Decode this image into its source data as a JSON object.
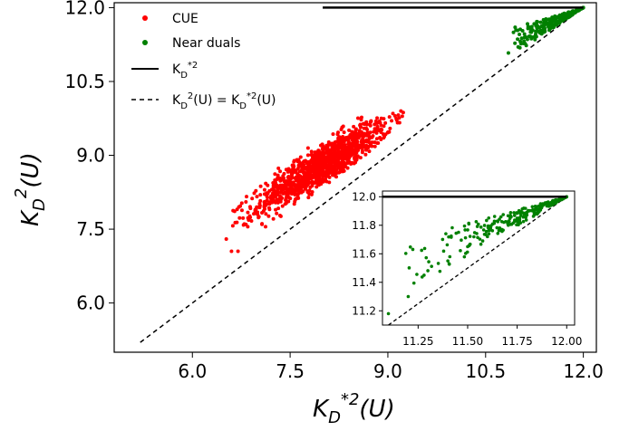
{
  "chart_data": [
    {
      "type": "scatter",
      "role": "main",
      "xlabel": "K_D^{*2}(U)",
      "ylabel": "K_D^{2}(U)",
      "xlim": [
        4.8,
        12.2
      ],
      "ylim": [
        5.0,
        12.1
      ],
      "xticks": [
        6.0,
        7.5,
        9.0,
        10.5,
        12.0
      ],
      "xtick_labels": [
        "6.0",
        "7.5",
        "9.0",
        "10.5",
        "12.0"
      ],
      "yticks": [
        6.0,
        7.5,
        9.0,
        10.5,
        12.0
      ],
      "ytick_labels": [
        "6.0",
        "7.5",
        "9.0",
        "10.5",
        "12.0"
      ],
      "grid": false,
      "legend_position": "top-left",
      "series": [
        {
          "name": "CUE",
          "kind": "scatter",
          "color": "#ff0000",
          "cluster": {
            "x_range": [
              6.5,
              9.3
            ],
            "y_range": [
              7.0,
              9.9
            ],
            "center": [
              8.0,
              8.8
            ],
            "count": 1200
          },
          "points": [
            [
              6.52,
              7.3
            ],
            [
              6.6,
              7.05
            ],
            [
              6.7,
              7.05
            ],
            [
              6.85,
              7.55
            ],
            [
              7.0,
              7.8
            ],
            [
              7.3,
              8.1
            ],
            [
              7.7,
              8.5
            ],
            [
              8.0,
              8.8
            ],
            [
              8.3,
              9.1
            ],
            [
              8.6,
              9.4
            ],
            [
              8.9,
              9.75
            ],
            [
              9.2,
              9.9
            ]
          ]
        },
        {
          "name": "Near duals",
          "kind": "scatter",
          "color": "#008000",
          "points": [
            [
              10.85,
              11.08
            ],
            [
              11.0,
              11.2
            ],
            [
              11.2,
              11.5
            ],
            [
              11.4,
              11.65
            ],
            [
              11.6,
              11.8
            ],
            [
              11.8,
              11.9
            ],
            [
              12.0,
              12.0
            ]
          ]
        },
        {
          "name": "K_D^{*2}",
          "kind": "line",
          "style": "solid",
          "color": "#000000",
          "x": [
            8.0,
            12.0
          ],
          "y": [
            12.0,
            12.0
          ]
        },
        {
          "name": "K_D^2(U) = K_D^{*2}(U)",
          "kind": "line",
          "style": "dashed",
          "color": "#000000",
          "x": [
            5.2,
            12.0
          ],
          "y": [
            5.2,
            12.0
          ]
        }
      ]
    },
    {
      "type": "scatter",
      "role": "inset",
      "xlim": [
        11.07,
        12.04
      ],
      "ylim": [
        11.1,
        12.04
      ],
      "xticks": [
        11.25,
        11.5,
        11.75,
        12.0
      ],
      "xtick_labels": [
        "11.25",
        "11.50",
        "11.75",
        "12.00"
      ],
      "yticks": [
        11.2,
        11.4,
        11.6,
        11.8,
        12.0
      ],
      "ytick_labels": [
        "11.2",
        "11.4",
        "11.6",
        "11.8",
        "12.0"
      ],
      "grid": false,
      "series": [
        {
          "name": "Near duals",
          "kind": "scatter",
          "color": "#008000",
          "points": [
            [
              11.1,
              11.18
            ],
            [
              11.2,
              11.3
            ],
            [
              11.28,
              11.45
            ],
            [
              11.4,
              11.55
            ],
            [
              11.5,
              11.65
            ],
            [
              11.6,
              11.72
            ],
            [
              11.75,
              11.85
            ],
            [
              11.9,
              11.95
            ],
            [
              12.0,
              12.0
            ]
          ]
        },
        {
          "name": "K_D^{*2}",
          "kind": "line",
          "style": "solid",
          "color": "#000000",
          "x": [
            11.07,
            12.0
          ],
          "y": [
            12.0,
            12.0
          ]
        },
        {
          "name": "K_D^2(U) = K_D^{*2}(U)",
          "kind": "line",
          "style": "dashed",
          "color": "#000000",
          "x": [
            11.1,
            12.0
          ],
          "y": [
            11.1,
            12.0
          ]
        }
      ]
    }
  ],
  "legend": {
    "cue_label": "CUE",
    "near_duals_label": "Near duals"
  }
}
